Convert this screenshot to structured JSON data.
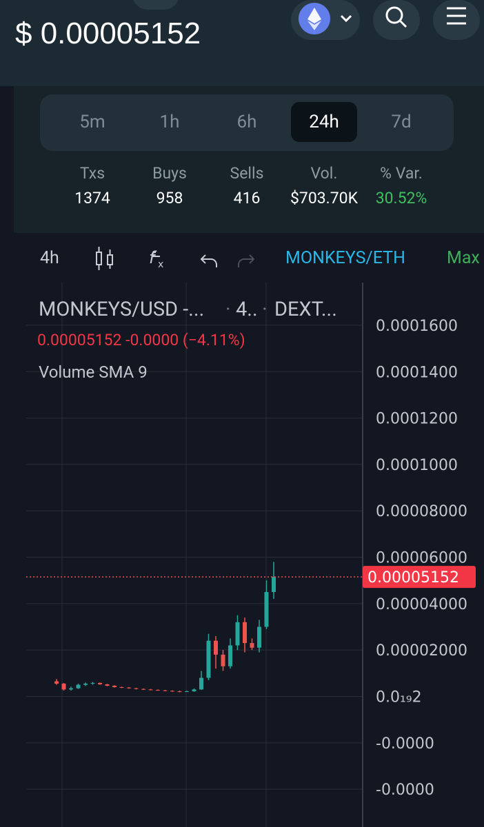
{
  "header": {
    "price": "$ 0.00005152"
  },
  "tabs": [
    "5m",
    "1h",
    "6h",
    "24h",
    "7d"
  ],
  "active_tab": 3,
  "stats": [
    {
      "label": "Txs",
      "value": 1374
    },
    {
      "label": "Buys",
      "value": 958
    },
    {
      "label": "Sells",
      "value": 416
    },
    {
      "label": "Vol.",
      "value": "$703.70K"
    },
    {
      "label": "% Var.",
      "value": "30.52%"
    }
  ],
  "toolbar": {
    "interval": "4h",
    "pair": "MONKEYS/ETH",
    "range": "Max"
  },
  "legend": {
    "symbol": "MONKEYS/USD -...",
    "interval": "4..",
    "exchange": "DEXT...",
    "change": "-0.0000",
    "change_pct": "(−4.11%)",
    "indicator": "Volume SMA 9"
  },
  "chart_data": {
    "type": "candlestick",
    "open": [
      6.5e-06,
      5.5e-06,
      3e-06,
      3.5e-06,
      5e-06,
      5.5e-06,
      5.8e-06,
      5.2e-06,
      4.6e-06,
      4e-06,
      3.8e-06,
      3.5e-06,
      3.2e-06,
      3e-06,
      2.8e-06,
      2.6e-06,
      2.4e-06,
      2.2e-06,
      2e-06,
      2.2e-06,
      3e-06,
      8e-06,
      2.4e-05,
      1.8e-05,
      1.3e-05,
      2.2e-05,
      3.2e-05,
      2.3e-05,
      2.1e-05,
      3e-05,
      4.5e-05
    ],
    "high": [
      7.5e-06,
      5.8e-06,
      4.2e-06,
      5.5e-06,
      6e-06,
      6.2e-06,
      6e-06,
      5.4e-06,
      4.8e-06,
      4.2e-06,
      4e-06,
      3.7e-06,
      3.4e-06,
      3.2e-06,
      3e-06,
      2.8e-06,
      2.6e-06,
      2.5e-06,
      2.5e-06,
      3.4e-06,
      1.1e-05,
      2.7e-05,
      2.6e-05,
      2e-05,
      2.5e-05,
      3.5e-05,
      3.4e-05,
      2.5e-05,
      3.3e-05,
      5e-05,
      5.8e-05
    ],
    "low": [
      5e-06,
      2.5e-06,
      2.5e-06,
      3.2e-06,
      4.5e-06,
      5e-06,
      5e-06,
      4.4e-06,
      3.8e-06,
      3.6e-06,
      3.3e-06,
      3e-06,
      2.8e-06,
      2.6e-06,
      2.4e-06,
      2.2e-06,
      2e-06,
      1.8e-06,
      1.9e-06,
      2e-06,
      2.8e-06,
      7e-06,
      1.2e-05,
      1.1e-05,
      1.2e-05,
      2e-05,
      1.9e-05,
      2e-05,
      1.9e-05,
      2.9e-05,
      4.2e-05
    ],
    "close": [
      5.5e-06,
      3e-06,
      3.5e-06,
      5e-06,
      5.5e-06,
      5.8e-06,
      5.2e-06,
      4.6e-06,
      4e-06,
      3.8e-06,
      3.5e-06,
      3.2e-06,
      3e-06,
      2.8e-06,
      2.6e-06,
      2.4e-06,
      2.2e-06,
      2e-06,
      2.2e-06,
      3e-06,
      8e-06,
      2.4e-05,
      1.8e-05,
      1.3e-05,
      2.2e-05,
      3.2e-05,
      2.3e-05,
      2.1e-05,
      3e-05,
      4.5e-05,
      5.152e-05
    ],
    "last_price": 5.152e-05,
    "up_color": "#26a69a",
    "down_color": "#ef5350",
    "ylim": [
      -5.63e-05,
      0.0001784
    ],
    "yticks": [
      {
        "value": 0.00016,
        "label": "0.0001600"
      },
      {
        "value": 0.00014,
        "label": "0.0001400"
      },
      {
        "value": 0.00012,
        "label": "0.0001200"
      },
      {
        "value": 0.0001,
        "label": "0.0001000"
      },
      {
        "value": 8e-05,
        "label": "0.00008000"
      },
      {
        "value": 6e-05,
        "label": "0.00006000"
      },
      {
        "value": 4e-05,
        "label": "0.00004000"
      },
      {
        "value": 2e-05,
        "label": "0.00002000"
      },
      {
        "value": 2e-20,
        "label": "0.0₁₉2"
      },
      {
        "value": -2e-05,
        "label": "-0.0000"
      },
      {
        "value": -4e-05,
        "label": "-0.0000"
      }
    ],
    "grid": true
  }
}
